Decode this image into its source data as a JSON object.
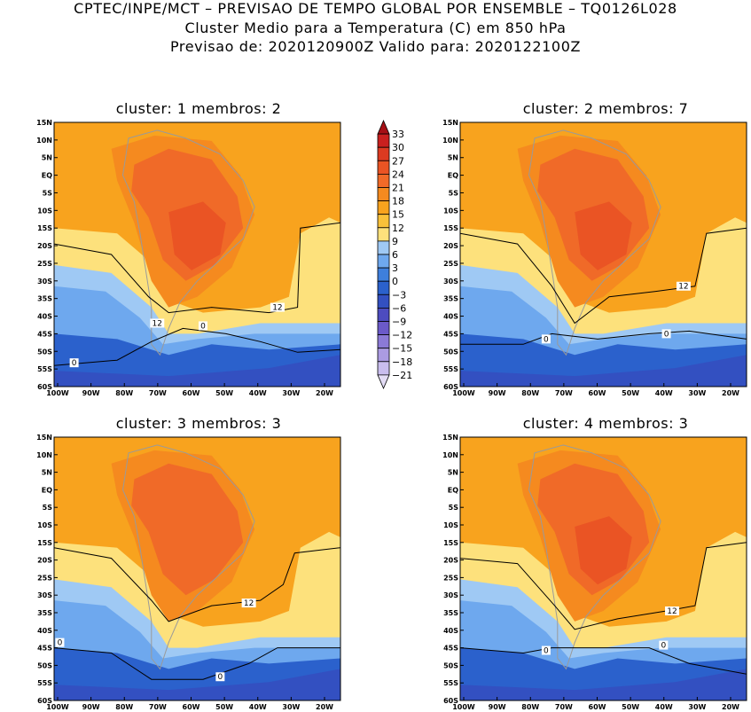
{
  "header": {
    "line1": "CPTEC/INPE/MCT – PREVISAO DE TEMPO GLOBAL POR ENSEMBLE – TQ0126L028",
    "line2": "Cluster Medio para a Temperatura (C) em 850 hPa",
    "line3": "Previsao de: 2020120900Z    Valido para: 2020122100Z"
  },
  "panels": [
    {
      "title": "cluster: 1   membros: 2",
      "contour_labels": [
        "12",
        "12",
        "0",
        "0"
      ]
    },
    {
      "title": "cluster: 2   membros: 7",
      "contour_labels": [
        "12",
        "0",
        "0"
      ]
    },
    {
      "title": "cluster: 3   membros: 3",
      "contour_labels": [
        "12",
        "0",
        "0"
      ]
    },
    {
      "title": "cluster: 4   membros: 3",
      "contour_labels": [
        "12",
        "0",
        "0"
      ]
    }
  ],
  "lat_ticks": [
    "15N",
    "10N",
    "5N",
    "EQ",
    "5S",
    "10S",
    "15S",
    "20S",
    "25S",
    "30S",
    "35S",
    "40S",
    "45S",
    "50S",
    "55S",
    "60S"
  ],
  "lon_ticks": [
    "100W",
    "90W",
    "80W",
    "70W",
    "60W",
    "50W",
    "40W",
    "30W",
    "20W"
  ],
  "colorbar": {
    "labels": [
      "33",
      "30",
      "27",
      "24",
      "21",
      "18",
      "15",
      "12",
      "9",
      "6",
      "3",
      "0",
      "−3",
      "−6",
      "−9",
      "−12",
      "−15",
      "−18",
      "−21"
    ],
    "colors": [
      "#a50f15",
      "#c9201f",
      "#dc3a21",
      "#ea5424",
      "#f06a28",
      "#f58a1f",
      "#f8a31e",
      "#f9c13a",
      "#fde17c",
      "#9fc9f4",
      "#6ea8ee",
      "#3e7fdc",
      "#2b61cc",
      "#3350c1",
      "#4d4cbf",
      "#6b5ac9",
      "#8b7ad6",
      "#ab9be2",
      "#c9bdee",
      "#e3dcf5"
    ]
  },
  "colors": {
    "land_border": "#9a9a9a",
    "contour": "#000000"
  }
}
